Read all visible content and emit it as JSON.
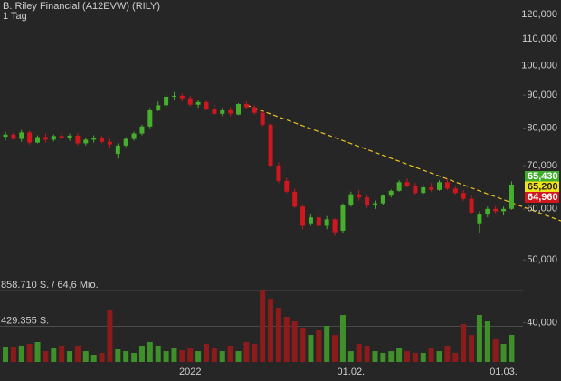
{
  "chart_data": {
    "type": "candlestick",
    "title": "B. Riley Financial (A12EVW) (RILY)",
    "subtitle": "1 Tag",
    "categories": [
      null,
      null,
      null,
      null,
      null,
      null,
      null,
      null,
      null,
      null,
      null,
      null,
      null,
      null,
      null,
      null,
      null,
      null,
      null,
      null,
      null,
      null,
      null,
      "2022",
      null,
      null,
      null,
      null,
      null,
      null,
      null,
      null,
      null,
      null,
      null,
      null,
      null,
      null,
      null,
      null,
      null,
      null,
      null,
      "01.02.",
      null,
      null,
      null,
      null,
      null,
      null,
      null,
      null,
      null,
      null,
      null,
      null,
      null,
      null,
      null,
      null,
      null,
      null,
      "01.03.",
      null
    ],
    "open": [
      77600,
      78200,
      77000,
      78800,
      76000,
      77500,
      76800,
      77800,
      77300,
      77900,
      75800,
      76800,
      77200,
      76200,
      73000,
      75200,
      77000,
      78500,
      80500,
      85500,
      86800,
      89500,
      89800,
      89000,
      87000,
      87800,
      85800,
      84200,
      85500,
      84000,
      87200,
      86200,
      84500,
      81000,
      70000,
      66300,
      63800,
      60500,
      57000,
      58200,
      56500,
      57800,
      55500,
      60800,
      63200,
      62500,
      60800,
      61200,
      62900,
      64000,
      66000,
      65200,
      63500,
      64800,
      64200,
      66000,
      64500,
      63500,
      62200,
      57000,
      58800,
      60000,
      59500,
      60000
    ],
    "high": [
      79000,
      78800,
      79500,
      79300,
      78000,
      78500,
      78200,
      79000,
      78500,
      78600,
      77200,
      78000,
      77800,
      77000,
      75800,
      77500,
      79000,
      81000,
      86000,
      88000,
      90500,
      91000,
      90500,
      89800,
      88500,
      88200,
      86800,
      86000,
      86200,
      87500,
      88000,
      86800,
      85000,
      81500,
      70800,
      67000,
      64500,
      61000,
      59000,
      59200,
      58500,
      58000,
      61200,
      63800,
      64200,
      63000,
      61800,
      63200,
      64300,
      66500,
      66800,
      65800,
      65500,
      65800,
      66500,
      66800,
      65200,
      64200,
      63000,
      59500,
      60500,
      60600,
      60500,
      66200
    ],
    "low": [
      76500,
      76800,
      76200,
      75500,
      75800,
      76000,
      76300,
      77000,
      76500,
      75200,
      75200,
      76000,
      75800,
      74500,
      71800,
      74800,
      76500,
      78000,
      80000,
      85000,
      86000,
      88500,
      88000,
      86500,
      86000,
      85200,
      83800,
      83500,
      83500,
      83800,
      85800,
      84000,
      80500,
      69500,
      65800,
      63500,
      60200,
      55800,
      56500,
      56000,
      55800,
      54500,
      55000,
      60500,
      61800,
      60200,
      60000,
      60800,
      62500,
      63800,
      64800,
      63000,
      63000,
      63800,
      64000,
      64200,
      63200,
      61800,
      58800,
      55000,
      58200,
      58800,
      58600,
      59800
    ],
    "close": [
      78200,
      77000,
      78800,
      76000,
      77500,
      76800,
      77800,
      77300,
      77900,
      75800,
      76800,
      77200,
      76200,
      75500,
      75200,
      77000,
      78500,
      80500,
      85500,
      86800,
      89500,
      89800,
      89000,
      87000,
      87800,
      85800,
      84200,
      85500,
      84300,
      87200,
      86200,
      84500,
      81000,
      70000,
      66300,
      63800,
      60500,
      56500,
      58200,
      56500,
      57800,
      55200,
      60800,
      63200,
      62500,
      60800,
      61200,
      62900,
      64000,
      66000,
      65200,
      63500,
      64800,
      64200,
      66000,
      64500,
      63500,
      62200,
      59200,
      58800,
      60000,
      59500,
      60000,
      65430
    ],
    "volume": [
      185000,
      185000,
      196000,
      217000,
      239000,
      130000,
      163000,
      196000,
      130000,
      196000,
      130000,
      87000,
      109000,
      630000,
      152000,
      130000,
      109000,
      196000,
      239000,
      196000,
      130000,
      163000,
      141000,
      163000,
      130000,
      217000,
      163000,
      130000,
      196000,
      130000,
      239000,
      217000,
      870000,
      761000,
      652000,
      544000,
      489000,
      413000,
      326000,
      380000,
      435000,
      326000,
      565000,
      130000,
      217000,
      196000,
      130000,
      109000,
      130000,
      163000,
      130000,
      109000,
      109000,
      163000,
      130000,
      196000,
      109000,
      457000,
      326000,
      565000,
      489000,
      272000,
      217000,
      326000
    ],
    "up_color": "#46b02c",
    "down_color": "#d0161e",
    "volume_up_color": "#3f8f2a",
    "volume_down_color": "#8c1b1b",
    "log_scale": true,
    "ylim": [
      34750,
      126400
    ],
    "yticks": [
      {
        "value": 120000,
        "label": "120,000"
      },
      {
        "value": 110000,
        "label": "110,000"
      },
      {
        "value": 100000,
        "label": "100,000"
      },
      {
        "value": 90000,
        "label": "90,000"
      },
      {
        "value": 80000,
        "label": "80,000"
      },
      {
        "value": 70000,
        "label": "70,000"
      },
      {
        "value": 60000,
        "label": "60,000"
      },
      {
        "value": 50000,
        "label": "50,000"
      },
      {
        "value": 40000,
        "label": "40,000"
      }
    ],
    "y2lim": [
      0,
      1087000
    ],
    "y2ticks": [
      {
        "value": 858710,
        "label": "858.710 S. / 64,6 Mio."
      },
      {
        "value": 429355,
        "label": "429.355 S."
      }
    ],
    "price_labels": [
      {
        "value": 65430,
        "label": "65,430",
        "color": "#3fae2a"
      },
      {
        "value": 65200,
        "label": "65,200",
        "color": "#f2e21a"
      },
      {
        "value": 64960,
        "label": "64,960",
        "color": "#d0161e"
      }
    ]
  }
}
